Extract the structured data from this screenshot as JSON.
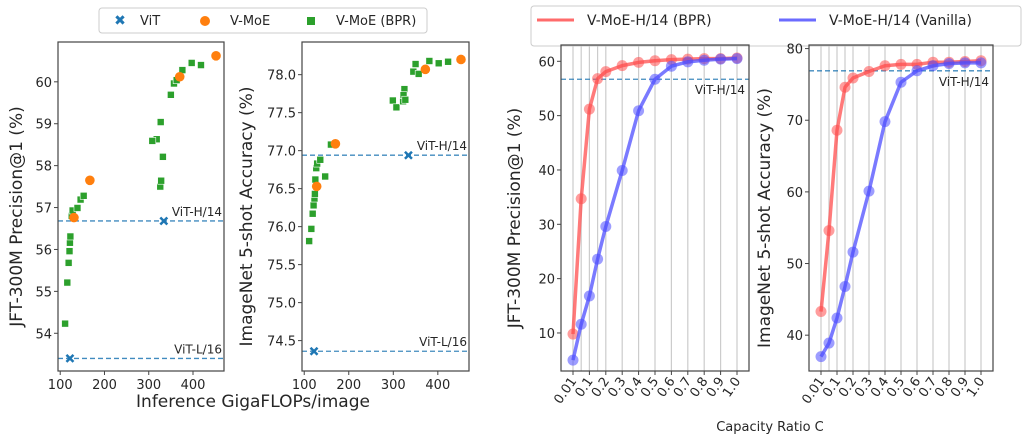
{
  "legend_left": {
    "items": [
      {
        "label": "ViT",
        "marker": "x-cross",
        "color": "#1f77b4"
      },
      {
        "label": "V-MoE",
        "marker": "circle",
        "color": "#ff7f0e"
      },
      {
        "label": "V-MoE (BPR)",
        "marker": "square",
        "color": "#2ca02c"
      }
    ]
  },
  "legend_right": {
    "items": [
      {
        "label": "V-MoE-H/14 (BPR)",
        "color": "#ff6b6b"
      },
      {
        "label": "V-MoE-H/14 (Vanilla)",
        "color": "#6b6bff"
      }
    ]
  },
  "shared_xlabel_left": "Inference GigaFLOPs/image",
  "shared_xlabel_right": "Capacity Ratio C",
  "chart_data": [
    {
      "type": "scatter",
      "title": "",
      "xlabel": "Inference GigaFLOPs/image",
      "ylabel": "JFT-300M Precision@1 (%)",
      "xlim": [
        95,
        470
      ],
      "ylim": [
        53.1,
        60.95
      ],
      "xticks": [
        100,
        200,
        300,
        400
      ],
      "yticks": [
        54,
        55,
        56,
        57,
        58,
        59,
        60
      ],
      "reference_lines": [
        {
          "label": "ViT-H/14",
          "y": 56.68
        },
        {
          "label": "ViT-L/16",
          "y": 53.4
        }
      ],
      "series": [
        {
          "name": "ViT",
          "points": [
            [
              334,
              56.68
            ],
            [
              122,
              53.4
            ]
          ]
        },
        {
          "name": "V-MoE",
          "points": [
            [
              131,
              56.76
            ],
            [
              167,
              57.65
            ],
            [
              370,
              60.12
            ],
            [
              452,
              60.62
            ]
          ]
        },
        {
          "name": "V-MoE (BPR)",
          "points": [
            [
              111,
              54.23
            ],
            [
              116,
              55.21
            ],
            [
              119,
              55.68
            ],
            [
              121,
              55.96
            ],
            [
              122,
              56.16
            ],
            [
              123,
              56.31
            ],
            [
              126,
              56.8
            ],
            [
              128,
              56.93
            ],
            [
              139,
              56.99
            ],
            [
              146,
              57.19
            ],
            [
              153,
              57.28
            ],
            [
              326,
              57.5
            ],
            [
              328,
              57.64
            ],
            [
              332,
              58.21
            ],
            [
              318,
              58.63
            ],
            [
              308,
              58.59
            ],
            [
              327,
              59.04
            ],
            [
              350,
              59.69
            ],
            [
              357,
              59.96
            ],
            [
              363,
              60.04
            ],
            [
              376,
              60.28
            ],
            [
              397,
              60.45
            ],
            [
              418,
              60.4
            ]
          ]
        }
      ]
    },
    {
      "type": "scatter",
      "title": "",
      "xlabel": "Inference GigaFLOPs/image",
      "ylabel": "ImageNet 5-shot Accuracy (%)",
      "xlim": [
        95,
        470
      ],
      "ylim": [
        74.1,
        78.43
      ],
      "xticks": [
        100,
        200,
        300,
        400
      ],
      "yticks": [
        74.5,
        75.0,
        75.5,
        76.0,
        76.5,
        77.0,
        77.5,
        78.0
      ],
      "reference_lines": [
        {
          "label": "ViT-H/14",
          "y": 76.94
        },
        {
          "label": "ViT-L/16",
          "y": 74.36
        }
      ],
      "series": [
        {
          "name": "ViT",
          "points": [
            [
              334,
              76.94
            ],
            [
              122,
              74.36
            ]
          ]
        },
        {
          "name": "V-MoE",
          "points": [
            [
              128,
              76.53
            ],
            [
              170,
              77.09
            ],
            [
              372,
              78.07
            ],
            [
              452,
              78.2
            ]
          ]
        },
        {
          "name": "V-MoE (BPR)",
          "points": [
            [
              111,
              75.81
            ],
            [
              116,
              75.97
            ],
            [
              119,
              76.17
            ],
            [
              121,
              76.28
            ],
            [
              123,
              76.37
            ],
            [
              124,
              76.43
            ],
            [
              125,
              76.62
            ],
            [
              127,
              76.77
            ],
            [
              129,
              76.83
            ],
            [
              136,
              76.88
            ],
            [
              147,
              76.66
            ],
            [
              160,
              77.08
            ],
            [
              299,
              77.66
            ],
            [
              307,
              77.57
            ],
            [
              322,
              77.65
            ],
            [
              325,
              77.81
            ],
            [
              323,
              77.73
            ],
            [
              327,
              77.67
            ],
            [
              345,
              78.04
            ],
            [
              357,
              78.01
            ],
            [
              350,
              78.14
            ],
            [
              381,
              78.18
            ],
            [
              402,
              78.15
            ],
            [
              423,
              78.17
            ]
          ]
        }
      ]
    },
    {
      "type": "line",
      "title": "",
      "xlabel": "Capacity Ratio C",
      "ylabel": "JFT-300M Precision@1 (%)",
      "categories": [
        "0.01",
        "0.05",
        "0.1",
        "0.15",
        "0.2",
        "0.3",
        "0.4",
        "0.5",
        "0.6",
        "0.7",
        "0.8",
        "0.9",
        "1.0"
      ],
      "xtick_labels": [
        "0.01",
        "0.1",
        "0.2",
        "0.3",
        "0.4",
        "0.5",
        "0.6",
        "0.7",
        "0.8",
        "0.9",
        "1.0"
      ],
      "ylim": [
        3,
        63
      ],
      "yticks": [
        10,
        20,
        30,
        40,
        50,
        60
      ],
      "grid": "vertical",
      "reference_lines": [
        {
          "label": "ViT-H/14",
          "y": 56.7
        }
      ],
      "series": [
        {
          "name": "V-MoE-H/14 (BPR)",
          "values": [
            9.8,
            34.7,
            51.2,
            56.8,
            58.1,
            59.2,
            59.8,
            60.1,
            60.3,
            60.4,
            60.5,
            60.5,
            60.6
          ]
        },
        {
          "name": "V-MoE-H/14 (Vanilla)",
          "values": [
            5.0,
            11.6,
            16.8,
            23.6,
            29.6,
            39.9,
            50.9,
            56.7,
            59.1,
            59.9,
            60.2,
            60.4,
            60.5
          ]
        }
      ]
    },
    {
      "type": "line",
      "title": "",
      "xlabel": "Capacity Ratio C",
      "ylabel": "ImageNet 5-shot Accuracy (%)",
      "categories": [
        "0.01",
        "0.05",
        "0.1",
        "0.15",
        "0.2",
        "0.3",
        "0.4",
        "0.5",
        "0.6",
        "0.7",
        "0.8",
        "0.9",
        "1.0"
      ],
      "xtick_labels": [
        "0.01",
        "0.1",
        "0.2",
        "0.3",
        "0.4",
        "0.5",
        "0.6",
        "0.7",
        "0.8",
        "0.9",
        "1.0"
      ],
      "ylim": [
        35,
        80.5
      ],
      "yticks": [
        40,
        50,
        60,
        70,
        80
      ],
      "grid": "vertical",
      "reference_lines": [
        {
          "label": "ViT-H/14",
          "y": 76.9
        }
      ],
      "series": [
        {
          "name": "V-MoE-H/14 (BPR)",
          "values": [
            43.3,
            54.6,
            68.6,
            74.6,
            75.9,
            76.8,
            77.6,
            77.8,
            77.8,
            78.1,
            78.1,
            78.2,
            78.3
          ]
        },
        {
          "name": "V-MoE-H/14 (Vanilla)",
          "values": [
            37.0,
            38.9,
            42.4,
            46.8,
            51.6,
            60.1,
            69.8,
            75.3,
            76.9,
            77.6,
            77.9,
            78.0,
            78.0
          ]
        }
      ]
    }
  ]
}
